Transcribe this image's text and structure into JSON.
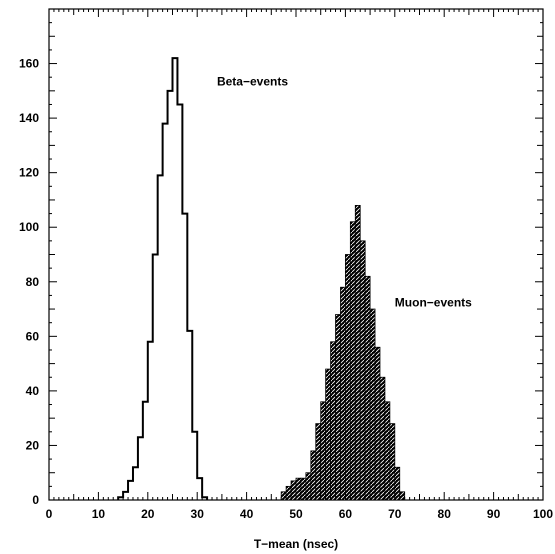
{
  "chart_data": {
    "type": "bar",
    "xlabel": "T−mean (nsec)",
    "ylabel": "",
    "xlim": [
      0,
      100
    ],
    "ylim": [
      0,
      180
    ],
    "x_ticks": [
      0,
      10,
      20,
      30,
      40,
      50,
      60,
      70,
      80,
      90,
      100
    ],
    "y_ticks": [
      0,
      20,
      40,
      60,
      80,
      100,
      120,
      140,
      160
    ],
    "grid": false,
    "bin_width": 1,
    "annotations": [
      {
        "text": "Beta−events",
        "x": 34,
        "y": 152
      },
      {
        "text": "Muon−events",
        "x": 70,
        "y": 71
      }
    ],
    "series": [
      {
        "style": "outline",
        "x": [
          14,
          15,
          16,
          17,
          18,
          19,
          20,
          21,
          22,
          23,
          24,
          25,
          26,
          27,
          28,
          29,
          30,
          31
        ],
        "values": [
          1,
          3,
          7,
          12,
          23,
          36,
          58,
          90,
          119,
          138,
          150,
          162,
          145,
          105,
          62,
          25,
          8,
          1
        ]
      },
      {
        "style": "hatched",
        "x": [
          47,
          48,
          49,
          50,
          51,
          52,
          53,
          54,
          55,
          56,
          57,
          58,
          59,
          60,
          61,
          62,
          63,
          64,
          65,
          66,
          67,
          68,
          69,
          70,
          71
        ],
        "values": [
          3,
          5,
          7,
          8,
          8,
          10,
          18,
          28,
          36,
          48,
          58,
          68,
          78,
          90,
          102,
          108,
          95,
          82,
          70,
          56,
          45,
          36,
          28,
          12,
          3
        ]
      }
    ]
  }
}
